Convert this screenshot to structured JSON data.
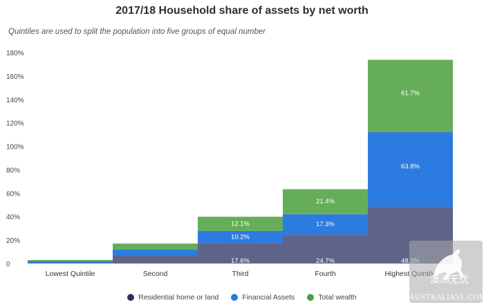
{
  "title": "2017/18 Household share of assets by net worth",
  "subtitle": "Quintiles are used to split the population into five groups of equal number",
  "colors": {
    "residential": "#5e6488",
    "financial": "#2c7be0",
    "total": "#66ad5a"
  },
  "legend": [
    {
      "label": "Residential home or land",
      "color": "#2b3260"
    },
    {
      "label": "Financial Assets",
      "color": "#2c7be0"
    },
    {
      "label": "Total wealth",
      "color": "#4aa04a"
    }
  ],
  "watermark": {
    "text": "AUSTRALIA51.COM",
    "chinese": "澳洲无忧"
  },
  "chart_data": {
    "type": "bar",
    "stacked": true,
    "categories": [
      "Lowest Quintile",
      "Second",
      "Third",
      "Fourth",
      "Highest Quintile"
    ],
    "series": [
      {
        "name": "Residential home or land",
        "values": [
          0.5,
          6.5,
          17.6,
          24.7,
          48.3
        ],
        "labels": [
          "",
          "",
          "17.6%",
          "24.7%",
          "48.3%"
        ]
      },
      {
        "name": "Financial Assets",
        "values": [
          1.5,
          5.5,
          10.2,
          17.3,
          63.8
        ],
        "labels": [
          "",
          "",
          "10.2%",
          "17.3%",
          "63.8%"
        ]
      },
      {
        "name": "Total wealth",
        "values": [
          1.0,
          5.0,
          12.1,
          21.4,
          61.7
        ],
        "labels": [
          "",
          "",
          "12.1%",
          "21.4%",
          "61.7%"
        ]
      }
    ],
    "yticks": [
      "0",
      "20%",
      "40%",
      "60%",
      "80%",
      "100%",
      "120%",
      "140%",
      "160%",
      "180%"
    ],
    "ylim": [
      0,
      180
    ],
    "grid": false,
    "legend_position": "bottom"
  }
}
